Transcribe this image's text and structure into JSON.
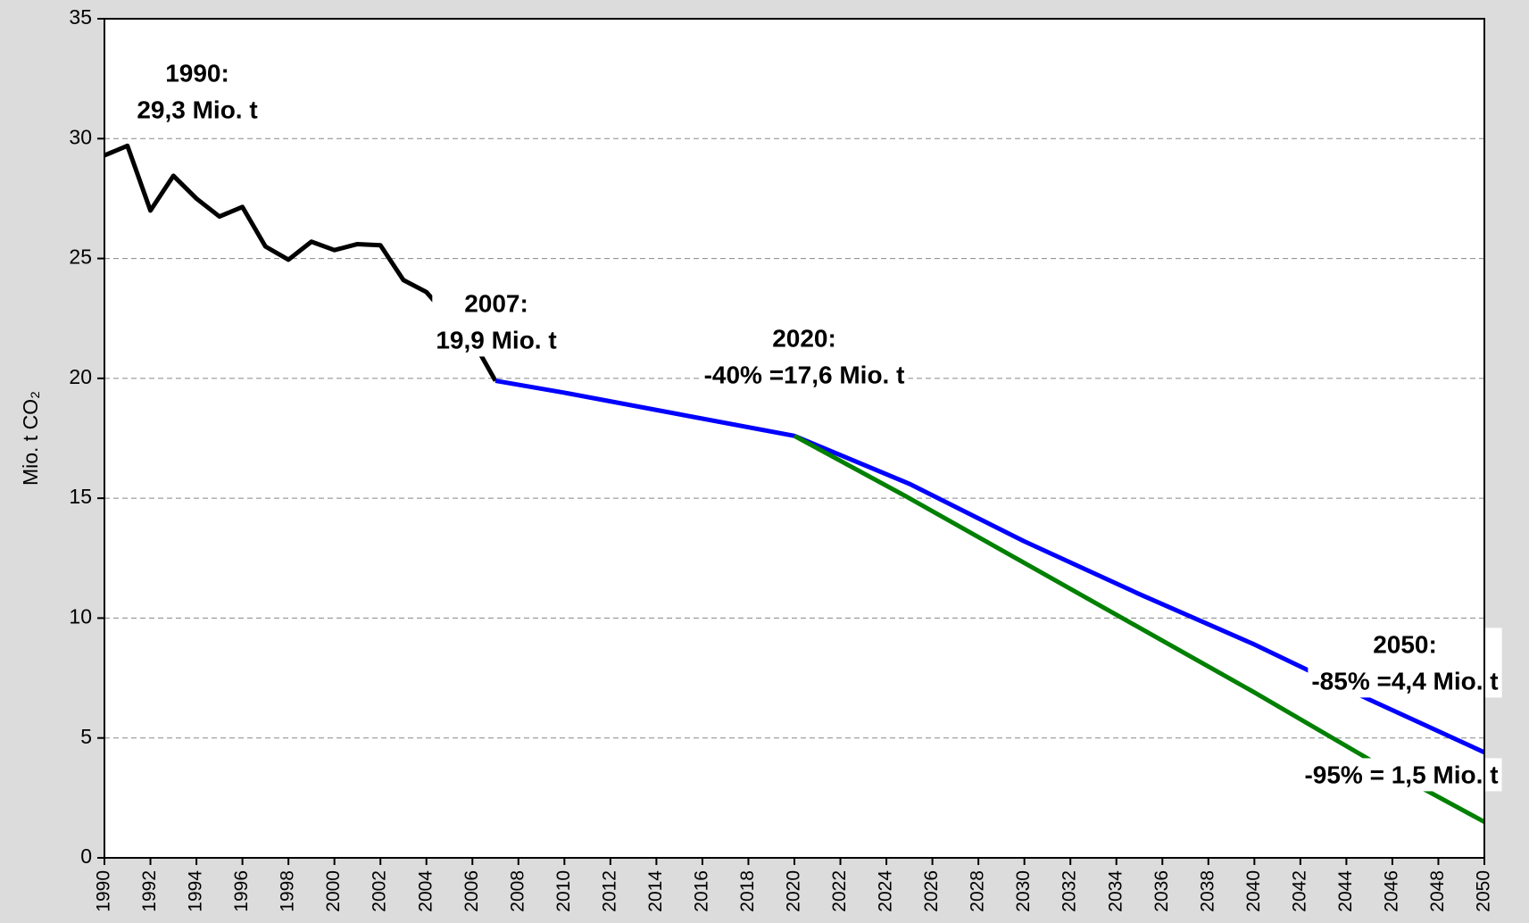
{
  "chart_data": {
    "type": "line",
    "y_label": "Mio. t CO₂",
    "xlim": [
      1990,
      2050
    ],
    "xticks": [
      1990,
      1992,
      1994,
      1996,
      1998,
      2000,
      2002,
      2004,
      2006,
      2008,
      2010,
      2012,
      2014,
      2016,
      2018,
      2020,
      2022,
      2024,
      2026,
      2028,
      2030,
      2032,
      2034,
      2036,
      2038,
      2040,
      2042,
      2044,
      2046,
      2048,
      2050
    ],
    "ylim": [
      0,
      35
    ],
    "yticks": [
      0,
      5,
      10,
      15,
      20,
      25,
      30,
      35
    ],
    "grid": true,
    "series": [
      {
        "color": "#000000",
        "x": [
          1990,
          1991,
          1992,
          1993,
          1994,
          1995,
          1996,
          1997,
          1998,
          1999,
          2000,
          2001,
          2002,
          2003,
          2004,
          2005,
          2006,
          2007
        ],
        "values": [
          29.3,
          29.7,
          27.0,
          28.45,
          27.5,
          26.75,
          27.15,
          25.5,
          24.95,
          25.7,
          25.35,
          25.6,
          25.55,
          24.1,
          23.6,
          22.5,
          21.6,
          19.9
        ]
      },
      {
        "color": "#0000ff",
        "x": [
          2007,
          2010,
          2015,
          2020,
          2025,
          2030,
          2035,
          2040,
          2045,
          2050
        ],
        "values": [
          19.9,
          19.4,
          18.5,
          17.6,
          15.6,
          13.2,
          11.0,
          8.9,
          6.6,
          4.4
        ]
      },
      {
        "color": "#008000",
        "x": [
          2020,
          2025,
          2030,
          2035,
          2040,
          2045,
          2050
        ],
        "values": [
          17.6,
          15.0,
          12.3,
          9.6,
          6.9,
          4.1,
          1.5
        ]
      }
    ],
    "annotations": [
      {
        "lines": [
          "1990:",
          "29,3 Mio. t"
        ]
      },
      {
        "lines": [
          "2007:",
          "19,9 Mio. t"
        ]
      },
      {
        "lines": [
          "2020:",
          "-40% =17,6 Mio. t"
        ]
      },
      {
        "lines": [
          "2050:",
          "-85% =4,4 Mio. t"
        ]
      },
      {
        "lines": [
          "-95% = 1,5 Mio. t"
        ]
      }
    ]
  }
}
